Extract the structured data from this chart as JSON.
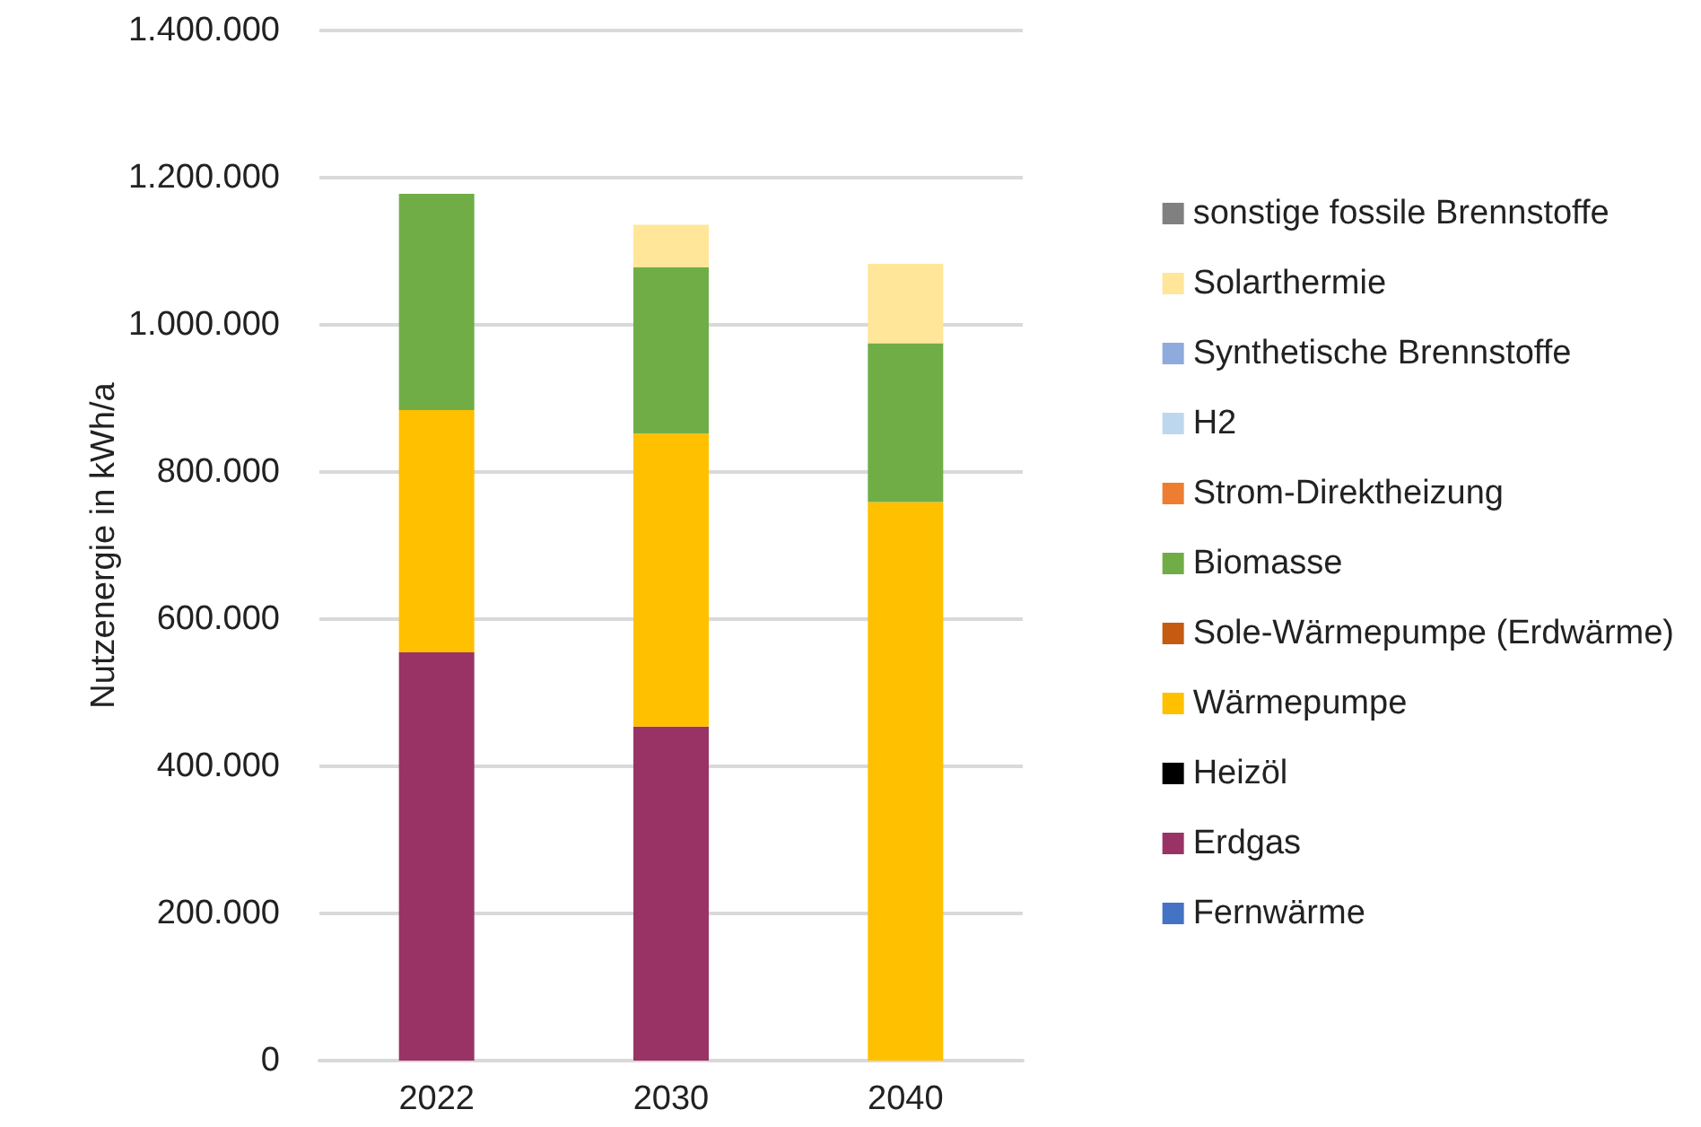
{
  "chart_data": {
    "type": "bar",
    "stacked": true,
    "ylabel": "Nutzenergie in kWh/a",
    "categories": [
      "2022",
      "2030",
      "2040"
    ],
    "series": [
      {
        "name": "Fernwärme",
        "color": "#4472c4",
        "values": [
          0,
          0,
          0
        ]
      },
      {
        "name": "Erdgas",
        "color": "#993366",
        "values": [
          555000,
          454000,
          0
        ]
      },
      {
        "name": "Heizöl",
        "color": "#000000",
        "values": [
          0,
          0,
          0
        ]
      },
      {
        "name": "Wärmepumpe",
        "color": "#ffc000",
        "values": [
          329000,
          398000,
          759000
        ]
      },
      {
        "name": "Sole-Wärmepumpe (Erdwärme)",
        "color": "#c55a11",
        "values": [
          0,
          0,
          0
        ]
      },
      {
        "name": "Biomasse",
        "color": "#70ad47",
        "values": [
          294000,
          226000,
          216000
        ]
      },
      {
        "name": "Strom-Direktheizung",
        "color": "#ed7d31",
        "values": [
          0,
          0,
          0
        ]
      },
      {
        "name": "H2",
        "color": "#bdd7ee",
        "values": [
          0,
          0,
          0
        ]
      },
      {
        "name": "Synthetische Brennstoffe",
        "color": "#8faadc",
        "values": [
          0,
          0,
          0
        ]
      },
      {
        "name": "Solarthermie",
        "color": "#ffe699",
        "values": [
          0,
          58000,
          108000
        ]
      },
      {
        "name": "sonstige fossile Brennstoffe",
        "color": "#808080",
        "values": [
          0,
          0,
          0
        ]
      }
    ],
    "ylim": [
      0,
      1400000
    ],
    "yticks": [
      0,
      {
        "value": 200000,
        "label": "200.000"
      },
      {
        "value": 400000,
        "label": "400.000"
      },
      {
        "value": 600000,
        "label": "600.000"
      },
      {
        "value": 800000,
        "label": "800.000"
      },
      {
        "value": 1000000,
        "label": "1.000.000"
      },
      {
        "value": 1200000,
        "label": "1.200.000"
      },
      {
        "value": 1400000,
        "label": "1.400.000"
      }
    ],
    "grid": "y",
    "legend": "right"
  }
}
